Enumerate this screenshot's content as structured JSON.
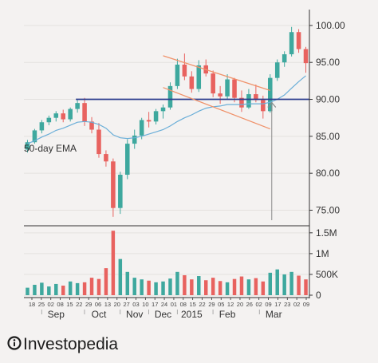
{
  "chart_data": {
    "type": "candlestick",
    "title": "",
    "y_ticks": [
      "100.00",
      "95.00",
      "90.00",
      "85.00",
      "80.00",
      "75.00"
    ],
    "y_tick_values": [
      100,
      95,
      90,
      85,
      80,
      75
    ],
    "ylim": [
      73,
      101.5
    ],
    "volume_ticks": [
      "1.5M",
      "1M",
      "500K",
      "0"
    ],
    "volume_tick_values": [
      1500000,
      1000000,
      500000,
      0
    ],
    "volume_lim": [
      0,
      1650000
    ],
    "day_ticks": [
      "18",
      "25",
      "02",
      "08",
      "15",
      "22",
      "29",
      "06",
      "13",
      "20",
      "27",
      "03",
      "10",
      "17",
      "24",
      "01",
      "08",
      "15",
      "22",
      "29",
      "05",
      "12",
      "20",
      "26",
      "02",
      "09",
      "17",
      "23",
      "02",
      "09"
    ],
    "month_labels": [
      "Sep",
      "Oct",
      "Nov",
      "Dec",
      "2015",
      "Feb",
      "Mar"
    ],
    "month_label_positions": [
      4.5,
      10.5,
      15.5,
      19.5,
      23.5,
      28.5,
      35
    ],
    "ema_label": "50-day EMA",
    "support_level": 90,
    "colors": {
      "up": "#3ea89e",
      "down": "#e8625f",
      "ema": "#6aaed8",
      "support": "#2c3d8f",
      "channel": "#f0926a",
      "arrow": "#8a8a8a",
      "axis": "#333333"
    },
    "weekly_ohlc": [
      [
        83.2,
        84.5,
        82.8,
        84.2
      ],
      [
        84.2,
        86.0,
        84.0,
        85.8
      ],
      [
        85.8,
        87.2,
        85.4,
        86.9
      ],
      [
        86.9,
        87.8,
        86.5,
        87.5
      ],
      [
        87.5,
        88.4,
        87.0,
        88.1
      ],
      [
        88.1,
        88.6,
        86.9,
        87.3
      ],
      [
        87.3,
        88.9,
        87.0,
        88.7
      ],
      [
        88.7,
        89.9,
        88.2,
        89.5
      ],
      [
        89.5,
        90.2,
        86.4,
        87.0
      ],
      [
        87.0,
        87.6,
        85.4,
        85.9
      ],
      [
        85.9,
        86.8,
        82.1,
        82.6
      ],
      [
        82.6,
        83.1,
        80.9,
        81.6
      ],
      [
        81.6,
        82.0,
        74.1,
        75.3
      ],
      [
        75.3,
        80.2,
        74.5,
        79.8
      ],
      [
        79.8,
        84.6,
        79.2,
        84.0
      ],
      [
        84.0,
        85.9,
        83.3,
        85.1
      ],
      [
        85.1,
        87.5,
        84.6,
        87.2
      ],
      [
        87.2,
        88.3,
        86.2,
        87.0
      ],
      [
        87.0,
        88.7,
        86.6,
        88.4
      ],
      [
        88.4,
        89.3,
        87.4,
        88.9
      ],
      [
        88.9,
        92.3,
        88.6,
        91.8
      ],
      [
        91.8,
        95.5,
        91.4,
        94.7
      ],
      [
        94.7,
        96.2,
        92.6,
        93.1
      ],
      [
        93.1,
        93.8,
        90.9,
        91.4
      ],
      [
        91.4,
        95.3,
        91.0,
        94.6
      ],
      [
        94.6,
        95.4,
        93.1,
        93.5
      ],
      [
        93.5,
        93.9,
        90.3,
        90.8
      ],
      [
        90.8,
        91.8,
        89.4,
        90.4
      ],
      [
        90.4,
        93.4,
        90.0,
        92.7
      ],
      [
        92.7,
        92.9,
        89.6,
        90.2
      ],
      [
        90.2,
        91.2,
        88.3,
        88.9
      ],
      [
        88.9,
        91.4,
        88.7,
        90.7
      ],
      [
        90.7,
        92.0,
        89.6,
        89.9
      ],
      [
        89.9,
        90.5,
        87.4,
        88.4
      ],
      [
        88.4,
        93.4,
        88.2,
        92.9
      ],
      [
        92.9,
        95.4,
        92.5,
        95.0
      ],
      [
        95.0,
        96.5,
        94.4,
        96.1
      ],
      [
        96.1,
        99.8,
        95.8,
        99.1
      ],
      [
        99.1,
        99.5,
        96.3,
        96.8
      ],
      [
        96.8,
        97.1,
        93.6,
        94.9
      ]
    ],
    "volume": [
      180000,
      250000,
      300000,
      210000,
      270000,
      230000,
      330000,
      290000,
      310000,
      420000,
      390000,
      650000,
      1550000,
      870000,
      560000,
      420000,
      380000,
      350000,
      310000,
      330000,
      400000,
      560000,
      480000,
      380000,
      460000,
      360000,
      420000,
      340000,
      310000,
      390000,
      450000,
      380000,
      410000,
      330000,
      540000,
      620000,
      500000,
      560000,
      470000,
      380000
    ],
    "ema_50": [
      84.0,
      84.4,
      84.9,
      85.3,
      85.8,
      86.1,
      86.5,
      86.9,
      87.0,
      86.9,
      86.6,
      86.1,
      85.2,
      84.8,
      84.7,
      84.8,
      85.0,
      85.3,
      85.6,
      85.9,
      86.4,
      87.0,
      87.5,
      87.9,
      88.4,
      88.8,
      89.0,
      89.1,
      89.3,
      89.3,
      89.3,
      89.4,
      89.4,
      89.4,
      89.6,
      90.0,
      90.6,
      91.5,
      92.4,
      93.2
    ],
    "channel_upper": [
      [
        19.5,
        95.9
      ],
      [
        34.5,
        91.2
      ]
    ],
    "channel_lower": [
      [
        19.5,
        91.6
      ],
      [
        34.5,
        86.0
      ]
    ]
  },
  "brand": {
    "name": "Investopedia"
  }
}
